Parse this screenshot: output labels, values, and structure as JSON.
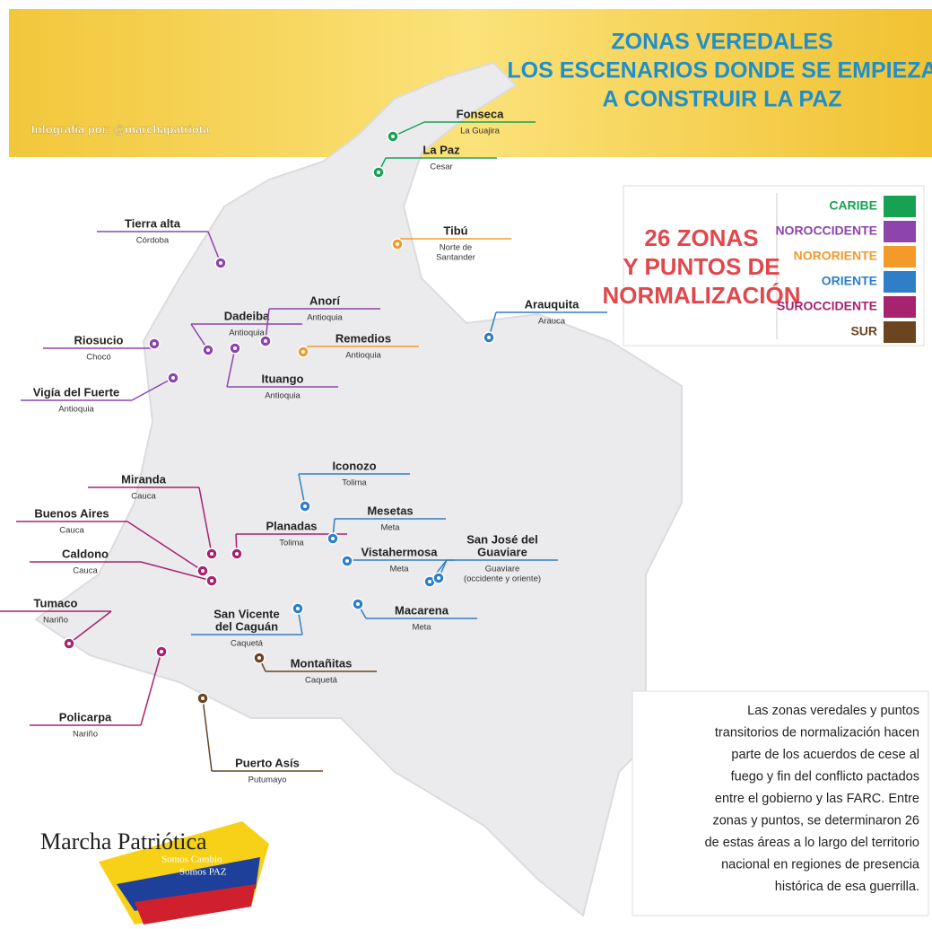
{
  "header": {
    "title": [
      "ZONAS VEREDALES",
      "LOS ESCENARIOS DONDE SE EMPIEZA",
      "A CONSTRUIR LA PAZ"
    ],
    "credit": "Infografía por: @marchapatriota"
  },
  "legend": {
    "title": [
      "26 ZONAS",
      "Y PUNTOS DE",
      "NORMALIZACIÓN"
    ],
    "regions": [
      {
        "name": "CARIBE",
        "color": "#17a253"
      },
      {
        "name": "NOROCCIDENTE",
        "color": "#8e44ad"
      },
      {
        "name": "NORORIENTE",
        "color": "#f39a2b"
      },
      {
        "name": "ORIENTE",
        "color": "#2f7fc8"
      },
      {
        "name": "SUROCCIDENTE",
        "color": "#a8236f"
      },
      {
        "name": "SUR",
        "color": "#6b4420"
      }
    ]
  },
  "locations": [
    {
      "name": [
        "Fonseca"
      ],
      "department": [
        "La Guajira"
      ],
      "region": 0
    },
    {
      "name": [
        "La Paz"
      ],
      "department": [
        "Cesar"
      ],
      "region": 0
    },
    {
      "name": [
        "Tibú"
      ],
      "department": [
        "Norte de",
        "Santander"
      ],
      "region": 2
    },
    {
      "name": [
        "Tierra alta"
      ],
      "department": [
        "Córdoba"
      ],
      "region": 1
    },
    {
      "name": [
        "Dadeiba"
      ],
      "department": [
        "Antioquia"
      ],
      "region": 1
    },
    {
      "name": [
        "Anorí"
      ],
      "department": [
        "Antioquia"
      ],
      "region": 1
    },
    {
      "name": [
        "Riosucio"
      ],
      "department": [
        "Chocó"
      ],
      "region": 1
    },
    {
      "name": [
        "Remedios"
      ],
      "department": [
        "Antioquia"
      ],
      "region": 2
    },
    {
      "name": [
        "Ituango"
      ],
      "department": [
        "Antioquia"
      ],
      "region": 1
    },
    {
      "name": [
        "Vigía del Fuerte"
      ],
      "department": [
        "Antioquia"
      ],
      "region": 1
    },
    {
      "name": [
        "Arauquita"
      ],
      "department": [
        "Arauca"
      ],
      "region": 3
    },
    {
      "name": [
        "Iconozo"
      ],
      "department": [
        "Tolima"
      ],
      "region": 3
    },
    {
      "name": [
        "Miranda"
      ],
      "department": [
        "Cauca"
      ],
      "region": 4
    },
    {
      "name": [
        "Planadas"
      ],
      "department": [
        "Tolima"
      ],
      "region": 4
    },
    {
      "name": [
        "Mesetas"
      ],
      "department": [
        "Meta"
      ],
      "region": 3
    },
    {
      "name": [
        "Buenos Aires"
      ],
      "department": [
        "Cauca"
      ],
      "region": 4
    },
    {
      "name": [
        "Caldono"
      ],
      "department": [
        "Cauca"
      ],
      "region": 4
    },
    {
      "name": [
        "Vistahermosa"
      ],
      "department": [
        "Meta"
      ],
      "region": 3
    },
    {
      "name": [
        "San José del",
        "Guaviare"
      ],
      "department": [
        "Guaviare",
        "(occidente y oriente)"
      ],
      "region": 3
    },
    {
      "name": [
        "Tumaco"
      ],
      "department": [
        "Nariño"
      ],
      "region": 4
    },
    {
      "name": [
        "San Vicente",
        "del Caguán"
      ],
      "department": [
        "Caquetá"
      ],
      "region": 3
    },
    {
      "name": [
        "Macarena"
      ],
      "department": [
        "Meta"
      ],
      "region": 3
    },
    {
      "name": [
        "Montañitas"
      ],
      "department": [
        "Caquetá"
      ],
      "region": 5
    },
    {
      "name": [
        "Policarpa"
      ],
      "department": [
        "Nariño"
      ],
      "region": 4
    },
    {
      "name": [
        "Puerto Asís"
      ],
      "department": [
        "Putumayo"
      ],
      "region": 5
    }
  ],
  "description": [
    "Las zonas veredales y puntos",
    "transitorios de normalización hacen",
    "parte de los acuerdos de cese al",
    "fuego y fin del conflicto pactados",
    "entre el gobierno y las FARC. Entre",
    "zonas y puntos, se determinaron 26",
    "de estas áreas a lo largo del territorio",
    "nacional en regiones de presencia",
    "histórica de esa guerrilla."
  ],
  "logo": {
    "name": "Marcha Patriótica",
    "slogan": [
      "Somos Cambio",
      "Somos PAZ"
    ]
  }
}
